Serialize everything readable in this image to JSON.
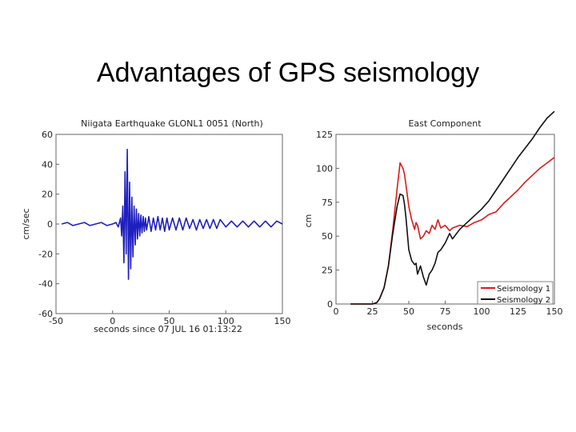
{
  "slide": {
    "title": "Advantages of GPS seismology"
  },
  "chart_data": [
    {
      "type": "line",
      "title": "Niigata Earthquake GLONL1 0051 (North)",
      "xlabel": "seconds since 07 JUL 16 01:13:22",
      "ylabel": "cm/sec",
      "xlim": [
        -50,
        150
      ],
      "ylim": [
        -60,
        60
      ],
      "xticks": [
        -50,
        0,
        50,
        100,
        150
      ],
      "yticks": [
        -60,
        -40,
        -20,
        0,
        20,
        40,
        60
      ],
      "grid": false,
      "color": "#1f1fbf",
      "series": [
        {
          "x": [
            -45,
            -40,
            -35,
            -30,
            -25,
            -20,
            -15,
            -10,
            -5,
            0,
            3,
            5,
            7,
            8,
            9,
            10,
            11,
            12,
            13,
            14,
            15,
            16,
            17,
            18,
            19,
            20,
            21,
            22,
            23,
            24,
            25,
            26,
            27,
            28,
            29,
            30,
            32,
            34,
            36,
            38,
            40,
            42,
            44,
            46,
            48,
            50,
            53,
            56,
            59,
            62,
            65,
            68,
            71,
            74,
            77,
            80,
            83,
            86,
            89,
            92,
            95,
            100,
            105,
            110,
            115,
            120,
            125,
            130,
            135,
            140,
            145,
            150
          ],
          "values": [
            0,
            1,
            -1,
            0,
            1,
            -1,
            0,
            1,
            -1,
            0,
            1,
            -2,
            4,
            -8,
            12,
            -26,
            35,
            -20,
            50,
            -37,
            28,
            -30,
            18,
            -22,
            12,
            -14,
            10,
            -10,
            7,
            -8,
            6,
            -6,
            5,
            -5,
            4,
            -4,
            5,
            -5,
            4,
            -4,
            5,
            -4,
            4,
            -5,
            4,
            -4,
            4,
            -4,
            4,
            -4,
            4,
            -3,
            3,
            -4,
            3,
            -3,
            3,
            -3,
            3,
            -3,
            3,
            -2,
            2,
            -2,
            2,
            -2,
            2,
            -2,
            2,
            -2,
            2,
            0
          ]
        }
      ]
    },
    {
      "type": "line",
      "title": "East Component",
      "xlabel": "seconds",
      "ylabel": "cm",
      "xlim": [
        0,
        150
      ],
      "ylim": [
        0,
        125
      ],
      "xticks": [
        0,
        25,
        50,
        75,
        100,
        125,
        150
      ],
      "yticks": [
        0,
        25,
        50,
        75,
        100,
        125
      ],
      "grid": false,
      "legend": "bottom-right",
      "series": [
        {
          "name": "Seismology 1",
          "color": "#e01818",
          "x": [
            10,
            20,
            25,
            28,
            30,
            33,
            36,
            39,
            42,
            44,
            46,
            47,
            48,
            50,
            52,
            54,
            55,
            56,
            58,
            60,
            62,
            64,
            66,
            68,
            70,
            72,
            75,
            78,
            80,
            85,
            90,
            95,
            100,
            105,
            110,
            115,
            120,
            125,
            130,
            135,
            140,
            145,
            150
          ],
          "values": [
            0,
            0,
            0,
            1,
            4,
            12,
            28,
            55,
            85,
            104,
            100,
            96,
            88,
            72,
            62,
            55,
            60,
            58,
            48,
            50,
            54,
            52,
            58,
            55,
            62,
            56,
            58,
            54,
            56,
            58,
            57,
            60,
            62,
            66,
            68,
            74,
            79,
            84,
            90,
            95,
            100,
            104,
            108
          ]
        },
        {
          "name": "Seismology 2",
          "color": "#111111",
          "x": [
            10,
            20,
            25,
            28,
            30,
            33,
            36,
            39,
            42,
            44,
            46,
            47,
            48,
            50,
            52,
            54,
            55,
            56,
            58,
            60,
            62,
            64,
            66,
            68,
            70,
            72,
            75,
            78,
            80,
            85,
            90,
            95,
            100,
            105,
            110,
            115,
            120,
            125,
            130,
            135,
            140,
            145,
            150
          ],
          "values": [
            0,
            0,
            0,
            1,
            4,
            12,
            28,
            52,
            72,
            81,
            80,
            74,
            64,
            40,
            32,
            29,
            30,
            22,
            28,
            20,
            14,
            22,
            25,
            30,
            38,
            40,
            45,
            52,
            48,
            55,
            60,
            65,
            70,
            76,
            84,
            92,
            100,
            108,
            115,
            122,
            130,
            137,
            142
          ]
        }
      ]
    }
  ]
}
